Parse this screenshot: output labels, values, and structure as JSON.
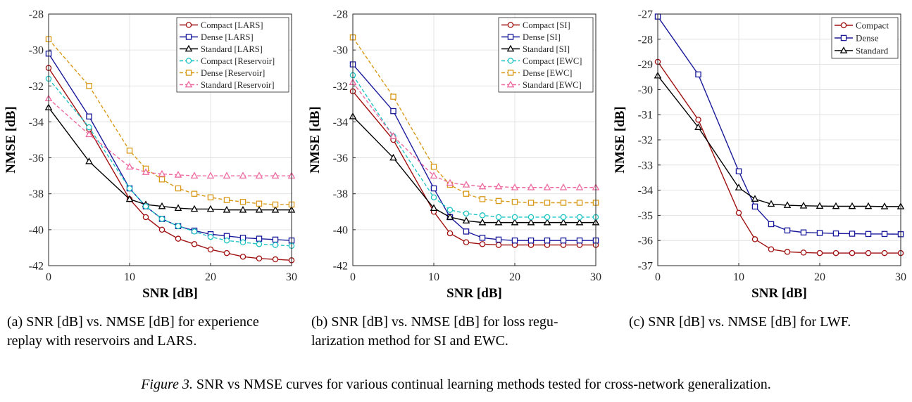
{
  "figure_caption": {
    "label": "Figure 3.",
    "text": " SNR vs NMSE curves for various continual learning methods tested for cross-network generalization."
  },
  "chart_data": [
    {
      "type": "line",
      "caption": "(a) SNR [dB] vs. NMSE [dB] for experience\nreplay with reservoirs and LARS.",
      "xlabel": "SNR [dB]",
      "ylabel": "NMSE [dB]",
      "xlim": [
        0,
        30
      ],
      "ylim": [
        -42,
        -28
      ],
      "xticks": [
        0,
        10,
        20,
        30
      ],
      "yticks": [
        -42,
        -40,
        -38,
        -36,
        -34,
        -32,
        -30,
        -28
      ],
      "grid": true,
      "legend_position": "top-right",
      "x": [
        0,
        5,
        10,
        12,
        14,
        16,
        18,
        20,
        22,
        24,
        26,
        28,
        30
      ],
      "series": [
        {
          "name": "Compact [LARS]",
          "color": "#a01010",
          "style": "solid",
          "marker": "circle",
          "values": [
            -31.0,
            -34.4,
            -38.3,
            -39.3,
            -40.0,
            -40.5,
            -40.8,
            -41.1,
            -41.3,
            -41.5,
            -41.6,
            -41.65,
            -41.7
          ]
        },
        {
          "name": "Dense [LARS]",
          "color": "#1a1a9c",
          "style": "solid",
          "marker": "square",
          "values": [
            -30.2,
            -33.7,
            -37.7,
            -38.7,
            -39.4,
            -39.8,
            -40.05,
            -40.25,
            -40.35,
            -40.45,
            -40.5,
            -40.55,
            -40.6
          ]
        },
        {
          "name": "Standard [LARS]",
          "color": "#000000",
          "style": "solid",
          "marker": "triangle",
          "values": [
            -33.2,
            -36.2,
            -38.3,
            -38.6,
            -38.7,
            -38.8,
            -38.85,
            -38.85,
            -38.9,
            -38.9,
            -38.9,
            -38.9,
            -38.9
          ]
        },
        {
          "name": "Compact [Reservoir]",
          "color": "#1fc4c4",
          "style": "dashed",
          "marker": "circle",
          "values": [
            -31.6,
            -34.3,
            -37.7,
            -38.7,
            -39.4,
            -39.8,
            -40.1,
            -40.4,
            -40.6,
            -40.7,
            -40.8,
            -40.85,
            -40.9
          ]
        },
        {
          "name": "Dense [Reservoir]",
          "color": "#d99a1a",
          "style": "dashed",
          "marker": "square",
          "values": [
            -29.4,
            -32.0,
            -35.6,
            -36.6,
            -37.2,
            -37.7,
            -38.0,
            -38.2,
            -38.35,
            -38.45,
            -38.55,
            -38.6,
            -38.6
          ]
        },
        {
          "name": "Standard [Reservoir]",
          "color": "#ee6aa0",
          "style": "dashed",
          "marker": "triangle",
          "values": [
            -32.7,
            -34.7,
            -36.5,
            -36.8,
            -36.9,
            -36.95,
            -37.0,
            -37.0,
            -37.0,
            -37.0,
            -37.0,
            -37.0,
            -37.0
          ]
        }
      ]
    },
    {
      "type": "line",
      "caption": "(b) SNR [dB] vs. NMSE [dB] for loss regu-\nlarization method for SI and EWC.",
      "xlabel": "SNR [dB]",
      "ylabel": "NMSE [dB]",
      "xlim": [
        0,
        30
      ],
      "ylim": [
        -42,
        -28
      ],
      "xticks": [
        0,
        10,
        20,
        30
      ],
      "yticks": [
        -42,
        -40,
        -38,
        -36,
        -34,
        -32,
        -30,
        -28
      ],
      "grid": true,
      "legend_position": "top-right",
      "x": [
        0,
        5,
        10,
        12,
        14,
        16,
        18,
        20,
        22,
        24,
        26,
        28,
        30
      ],
      "series": [
        {
          "name": "Compact [SI]",
          "color": "#a01010",
          "style": "solid",
          "marker": "circle",
          "values": [
            -32.3,
            -35.0,
            -39.0,
            -40.2,
            -40.7,
            -40.8,
            -40.85,
            -40.85,
            -40.85,
            -40.85,
            -40.85,
            -40.85,
            -40.85
          ]
        },
        {
          "name": "Dense [SI]",
          "color": "#1a1a9c",
          "style": "solid",
          "marker": "square",
          "values": [
            -30.8,
            -33.4,
            -37.7,
            -39.3,
            -40.1,
            -40.45,
            -40.55,
            -40.6,
            -40.6,
            -40.6,
            -40.6,
            -40.6,
            -40.6
          ]
        },
        {
          "name": "Standard [SI]",
          "color": "#000000",
          "style": "solid",
          "marker": "triangle",
          "values": [
            -33.7,
            -36.0,
            -38.8,
            -39.3,
            -39.5,
            -39.6,
            -39.6,
            -39.6,
            -39.6,
            -39.6,
            -39.6,
            -39.6,
            -39.6
          ]
        },
        {
          "name": "Compact [EWC]",
          "color": "#1fc4c4",
          "style": "dashed",
          "marker": "circle",
          "values": [
            -31.4,
            -34.8,
            -38.2,
            -38.9,
            -39.1,
            -39.2,
            -39.3,
            -39.3,
            -39.3,
            -39.3,
            -39.3,
            -39.3,
            -39.3
          ]
        },
        {
          "name": "Dense [EWC]",
          "color": "#d99a1a",
          "style": "dashed",
          "marker": "square",
          "values": [
            -29.3,
            -32.6,
            -36.5,
            -37.5,
            -38.0,
            -38.3,
            -38.4,
            -38.45,
            -38.5,
            -38.5,
            -38.5,
            -38.5,
            -38.5
          ]
        },
        {
          "name": "Standard [EWC]",
          "color": "#ee6aa0",
          "style": "dashed",
          "marker": "triangle",
          "values": [
            -31.8,
            -34.8,
            -37.0,
            -37.4,
            -37.5,
            -37.6,
            -37.6,
            -37.65,
            -37.65,
            -37.65,
            -37.65,
            -37.65,
            -37.65
          ]
        }
      ]
    },
    {
      "type": "line",
      "caption": "(c) SNR [dB] vs. NMSE [dB] for LWF.",
      "xlabel": "SNR [dB]",
      "ylabel": "NMSE [dB]",
      "xlim": [
        0,
        30
      ],
      "ylim": [
        -37,
        -27
      ],
      "xticks": [
        0,
        10,
        20,
        30
      ],
      "yticks": [
        -37,
        -36,
        -35,
        -34,
        -33,
        -32,
        -31,
        -30,
        -29,
        -28,
        -27
      ],
      "grid": true,
      "legend_position": "top-right",
      "x": [
        0,
        5,
        10,
        12,
        14,
        16,
        18,
        20,
        22,
        24,
        26,
        28,
        30
      ],
      "series": [
        {
          "name": "Compact",
          "color": "#a01010",
          "style": "solid",
          "marker": "circle",
          "values": [
            -28.9,
            -31.2,
            -34.9,
            -35.95,
            -36.35,
            -36.45,
            -36.48,
            -36.5,
            -36.5,
            -36.5,
            -36.5,
            -36.5,
            -36.5
          ]
        },
        {
          "name": "Dense",
          "color": "#1a1a9c",
          "style": "solid",
          "marker": "square",
          "values": [
            -27.1,
            -29.4,
            -33.25,
            -34.65,
            -35.35,
            -35.6,
            -35.68,
            -35.7,
            -35.72,
            -35.73,
            -35.74,
            -35.74,
            -35.75
          ]
        },
        {
          "name": "Standard",
          "color": "#000000",
          "style": "solid",
          "marker": "triangle",
          "values": [
            -29.45,
            -31.5,
            -33.9,
            -34.35,
            -34.55,
            -34.6,
            -34.62,
            -34.63,
            -34.64,
            -34.64,
            -34.64,
            -34.65,
            -34.65
          ]
        }
      ]
    }
  ]
}
